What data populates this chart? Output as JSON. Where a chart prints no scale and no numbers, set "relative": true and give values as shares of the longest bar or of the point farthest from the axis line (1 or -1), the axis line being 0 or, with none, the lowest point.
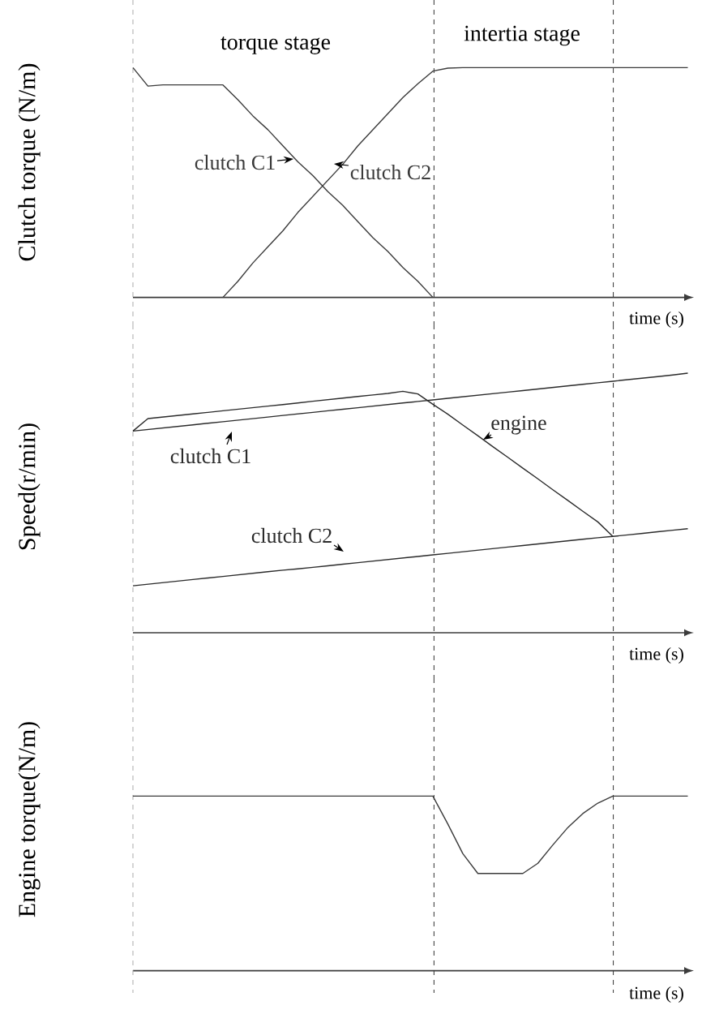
{
  "chart_data": [
    {
      "type": "line",
      "relative": true,
      "ylabel": "Clutch torque (N/m)",
      "xlabel": "time (s)",
      "categories": [
        null,
        null,
        null,
        null,
        null,
        null,
        null,
        null,
        null,
        null,
        null,
        null,
        null,
        null,
        null,
        null,
        null,
        null,
        null,
        null,
        null,
        null,
        null,
        null,
        null,
        null,
        null,
        null,
        null,
        null,
        null,
        null,
        null,
        null,
        null,
        null,
        null,
        null
      ],
      "series": [
        {
          "name": "clutch C1",
          "color": "#3a3a3a",
          "values": [
            1.0,
            0.92,
            0.925,
            0.925,
            0.925,
            0.925,
            0.925,
            0.86,
            0.79,
            0.73,
            0.66,
            0.59,
            0.53,
            0.46,
            0.4,
            0.33,
            0.26,
            0.2,
            0.13,
            0.07,
            0.0,
            null,
            null,
            null,
            null,
            null,
            null,
            null,
            null,
            null,
            null,
            null,
            null,
            null,
            null,
            null,
            null,
            null
          ]
        },
        {
          "name": "clutch C2",
          "color": "#3a3a3a",
          "values": [
            null,
            null,
            null,
            null,
            null,
            null,
            0.0,
            0.07,
            0.15,
            0.22,
            0.29,
            0.37,
            0.44,
            0.51,
            0.58,
            0.66,
            0.73,
            0.8,
            0.87,
            0.93,
            0.985,
            0.998,
            1.0,
            1.0,
            1.0,
            1.0,
            1.0,
            1.0,
            1.0,
            1.0,
            1.0,
            1.0,
            1.0,
            1.0,
            1.0,
            1.0,
            1.0,
            1.0
          ]
        }
      ],
      "annotations": [
        "torque stage",
        "intertia stage"
      ]
    },
    {
      "type": "line",
      "relative": true,
      "ylabel": "Speed(r/min)",
      "xlabel": "time (s)",
      "categories": [
        null,
        null,
        null,
        null,
        null,
        null,
        null,
        null,
        null,
        null,
        null,
        null,
        null,
        null,
        null,
        null,
        null,
        null,
        null,
        null,
        null,
        null,
        null,
        null,
        null,
        null,
        null,
        null,
        null,
        null,
        null,
        null,
        null,
        null,
        null,
        null,
        null,
        null
      ],
      "series": [
        {
          "name": "engine",
          "color": "#2a2a2a",
          "values": [
            0.777,
            0.825,
            0.831,
            0.837,
            0.843,
            0.849,
            0.855,
            0.861,
            0.867,
            0.873,
            0.879,
            0.885,
            0.892,
            0.898,
            0.904,
            0.91,
            0.916,
            0.922,
            0.93,
            0.92,
            0.88,
            0.842,
            0.8,
            0.759,
            0.717,
            0.676,
            0.634,
            0.593,
            0.551,
            0.51,
            0.468,
            0.427,
            0.371,
            null,
            null,
            null,
            null,
            null
          ]
        },
        {
          "name": "clutch C1",
          "color": "#2a2a2a",
          "values": [
            0.777,
            0.783,
            0.789,
            0.795,
            0.801,
            0.807,
            0.813,
            0.819,
            0.825,
            0.831,
            0.837,
            0.843,
            0.849,
            0.855,
            0.861,
            0.867,
            0.873,
            0.879,
            0.885,
            0.891,
            0.897,
            0.903,
            0.909,
            0.915,
            0.921,
            0.927,
            0.933,
            0.939,
            0.945,
            0.951,
            0.957,
            0.963,
            0.969,
            0.975,
            0.981,
            0.987,
            0.993,
            1.0
          ]
        },
        {
          "name": "clutch C2",
          "color": "#2a2a2a",
          "values": [
            0.181,
            0.187,
            0.193,
            0.199,
            0.205,
            0.211,
            0.217,
            0.223,
            0.229,
            0.235,
            0.241,
            0.246,
            0.252,
            0.258,
            0.264,
            0.27,
            0.276,
            0.282,
            0.288,
            0.294,
            0.3,
            0.306,
            0.312,
            0.318,
            0.324,
            0.33,
            0.336,
            0.342,
            0.348,
            0.354,
            0.36,
            0.366,
            0.371,
            0.377,
            0.383,
            0.389,
            0.395,
            0.401
          ]
        }
      ]
    },
    {
      "type": "line",
      "relative": true,
      "ylabel": "Engine torque(N/m)",
      "xlabel": "time (s)",
      "categories": [
        null,
        null,
        null,
        null,
        null,
        null,
        null,
        null,
        null,
        null,
        null,
        null,
        null,
        null,
        null,
        null,
        null,
        null,
        null,
        null,
        null,
        null,
        null,
        null,
        null,
        null,
        null,
        null,
        null,
        null,
        null,
        null,
        null,
        null,
        null,
        null,
        null,
        null
      ],
      "series": [
        {
          "color": "#3a3a3a",
          "values": [
            1.0,
            1.0,
            1.0,
            1.0,
            1.0,
            1.0,
            1.0,
            1.0,
            1.0,
            1.0,
            1.0,
            1.0,
            1.0,
            1.0,
            1.0,
            1.0,
            1.0,
            1.0,
            1.0,
            1.0,
            1.0,
            0.84,
            0.67,
            0.557,
            0.557,
            0.557,
            0.557,
            0.615,
            0.72,
            0.82,
            0.9,
            0.96,
            1.0,
            1.0,
            1.0,
            1.0,
            1.0,
            1.0
          ]
        }
      ]
    }
  ]
}
